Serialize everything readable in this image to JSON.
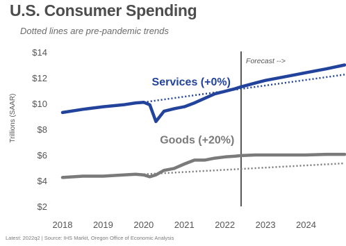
{
  "title": "U.S. Consumer Spending",
  "subtitle": "Dotted lines are pre-pandemic trends",
  "footer": "Latest: 2022q2  |  Source: IHS Markit, Oregon Office of Economic Analysis",
  "chart_data": {
    "type": "line",
    "ylabel": "Trillions (SAAR)",
    "ylim": [
      2,
      14
    ],
    "yticks": [
      "$14",
      "$12",
      "$10",
      "$8",
      "$6",
      "$4",
      "$2"
    ],
    "ytick_values": [
      14,
      12,
      10,
      8,
      6,
      4,
      2
    ],
    "xlim": [
      2018,
      2024.95
    ],
    "xticks": [
      "2018",
      "2019",
      "2020",
      "2021",
      "2022",
      "2023",
      "2024"
    ],
    "xtick_values": [
      2018,
      2019,
      2020,
      2021,
      2022,
      2023,
      2024
    ],
    "forecast_start": 2022.4,
    "forecast_label": "Forecast -->",
    "grid": false,
    "series": [
      {
        "name": "Services (+0%)",
        "color": "#22439b",
        "x": [
          2018.0,
          2018.5,
          2019.0,
          2019.5,
          2019.8,
          2020.0,
          2020.15,
          2020.3,
          2020.5,
          2020.75,
          2021.0,
          2021.25,
          2021.5,
          2021.75,
          2022.0,
          2022.25,
          2022.4,
          2022.75,
          2023.0,
          2023.5,
          2024.0,
          2024.5,
          2024.95
        ],
        "values": [
          9.3,
          9.55,
          9.75,
          9.9,
          10.05,
          10.1,
          9.9,
          8.6,
          9.4,
          9.6,
          9.75,
          10.05,
          10.4,
          10.75,
          10.95,
          11.15,
          11.3,
          11.6,
          11.8,
          12.1,
          12.4,
          12.7,
          13.0
        ]
      },
      {
        "name": "Goods (+20%)",
        "color": "#7a7a7a",
        "x": [
          2018.0,
          2018.5,
          2019.0,
          2019.5,
          2019.8,
          2020.0,
          2020.15,
          2020.3,
          2020.5,
          2020.75,
          2021.0,
          2021.25,
          2021.5,
          2021.75,
          2022.0,
          2022.25,
          2022.4,
          2022.75,
          2023.0,
          2023.5,
          2024.0,
          2024.5,
          2024.95
        ],
        "values": [
          4.25,
          4.35,
          4.35,
          4.45,
          4.5,
          4.45,
          4.3,
          4.45,
          4.8,
          4.95,
          5.3,
          5.6,
          5.6,
          5.75,
          5.85,
          5.9,
          5.95,
          6.0,
          6.0,
          6.0,
          6.0,
          6.05,
          6.05
        ]
      }
    ],
    "trends": [
      {
        "series": "Services (+0%)",
        "x": [
          2020.0,
          2024.95
        ],
        "values": [
          10.1,
          12.25
        ]
      },
      {
        "series": "Goods (+20%)",
        "x": [
          2020.0,
          2024.95
        ],
        "values": [
          4.5,
          5.35
        ]
      }
    ],
    "annotations": [
      {
        "text": "Services (+0%)",
        "x": 2020.2,
        "y": 11.4,
        "color": "#22439b"
      },
      {
        "text": "Goods (+20%)",
        "x": 2020.4,
        "y": 6.9,
        "color": "#7a7a7a"
      }
    ]
  }
}
